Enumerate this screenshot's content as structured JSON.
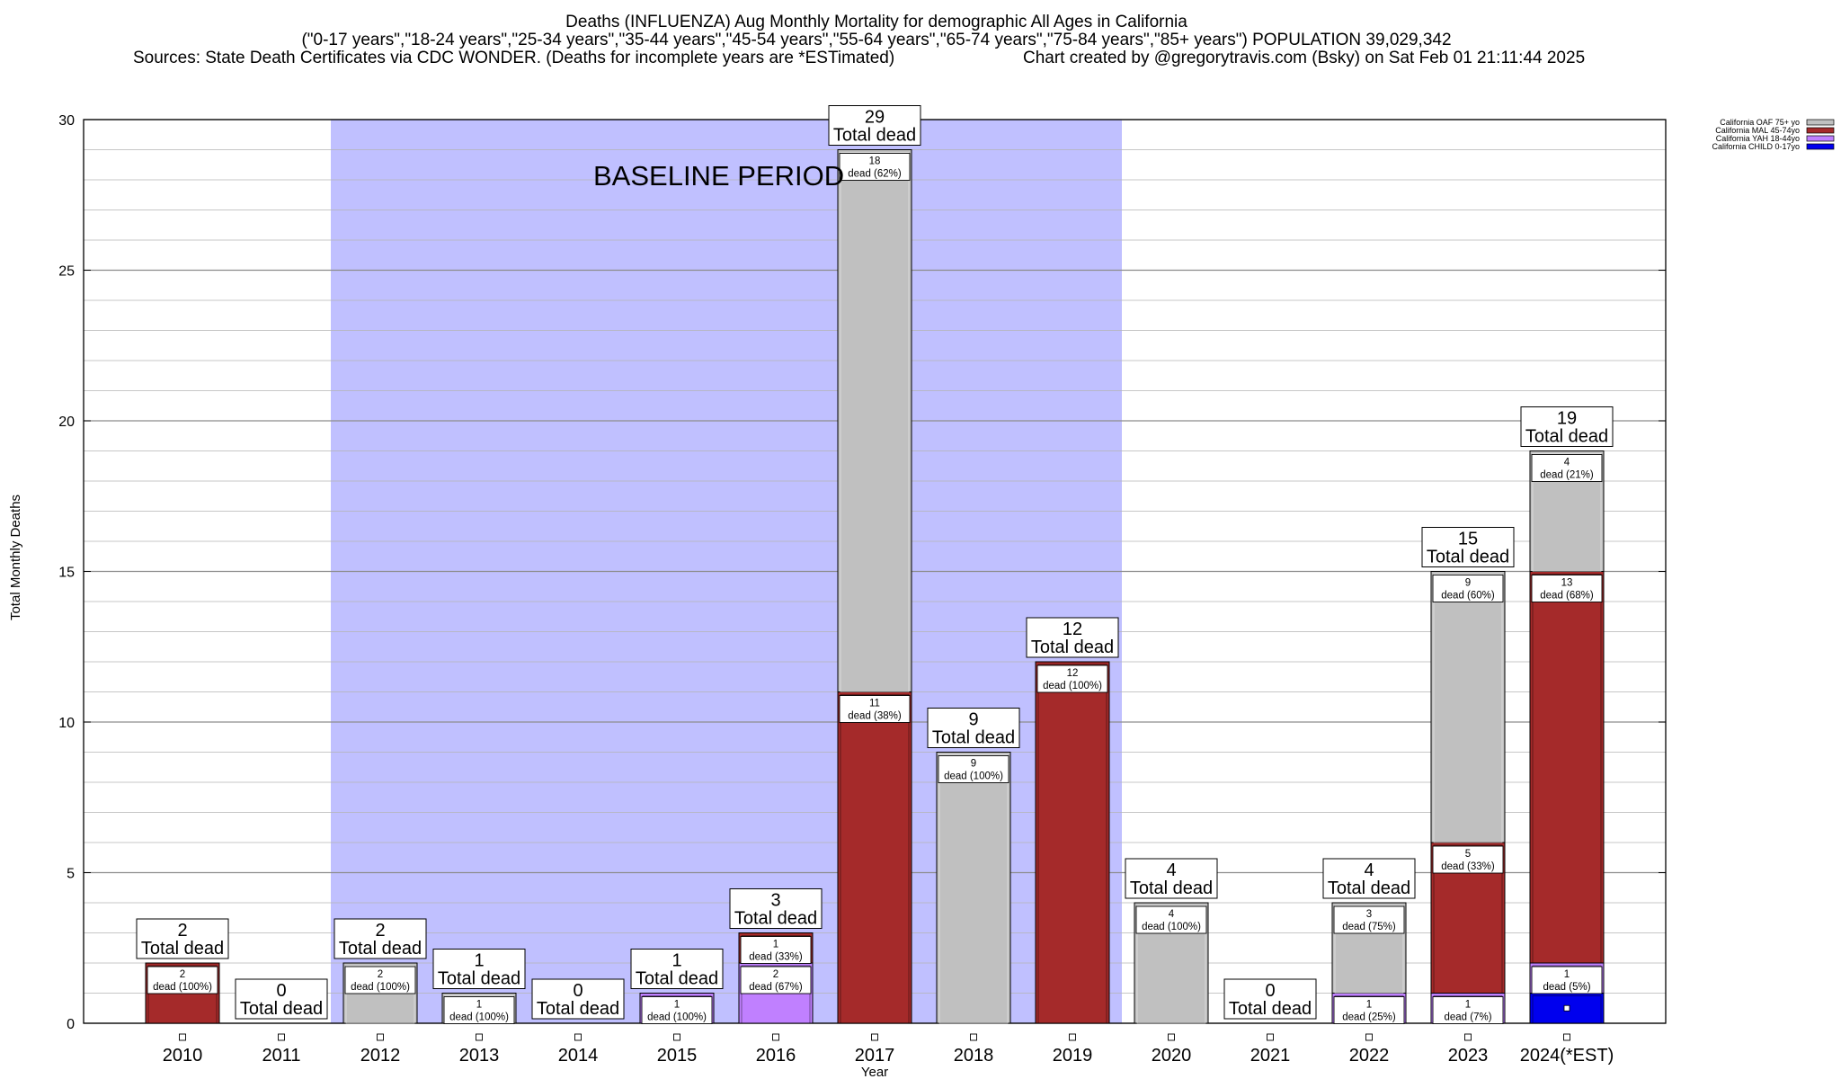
{
  "header": {
    "title": "Deaths (INFLUENZA) Aug Monthly Mortality for demographic All Ages in California",
    "subtitle": "(\"0-17 years\",\"18-24 years\",\"25-34 years\",\"35-44 years\",\"45-54 years\",\"55-64 years\",\"65-74 years\",\"75-84 years\",\"85+ years\") POPULATION 39,029,342",
    "sources": "Sources: State Death Certificates via CDC WONDER. (Deaths for incomplete years are *ESTimated)",
    "credit": "Chart created by @gregorytravis.com (Bsky) on Sat Feb 01 21:11:44 2025"
  },
  "chart_data": {
    "type": "bar",
    "stacked": true,
    "xlabel": "Year",
    "ylabel": "Total Monthly Deaths",
    "ylim": [
      0,
      30
    ],
    "yticks": [
      0,
      5,
      10,
      15,
      20,
      25,
      30
    ],
    "grid": true,
    "legend_position": "top-right",
    "categories": [
      "2010",
      "2011",
      "2012",
      "2013",
      "2014",
      "2015",
      "2016",
      "2017",
      "2018",
      "2019",
      "2020",
      "2021",
      "2022",
      "2023",
      "2024(*EST)"
    ],
    "series": [
      {
        "name": "California CHILD 0-17yo",
        "color": "#0000ee",
        "values": [
          0,
          0,
          0,
          0,
          0,
          0,
          0,
          0,
          0,
          0,
          0,
          0,
          0,
          0,
          1
        ]
      },
      {
        "name": "California YAH 18-44yo",
        "color": "#c080ff",
        "values": [
          0,
          0,
          0,
          0,
          0,
          1,
          2,
          0,
          0,
          0,
          0,
          0,
          1,
          1,
          1
        ]
      },
      {
        "name": "California MAL 45-74yo",
        "color": "#a52a2a",
        "values": [
          2,
          0,
          0,
          0,
          0,
          0,
          1,
          11,
          0,
          12,
          0,
          0,
          0,
          5,
          13
        ]
      },
      {
        "name": "California OAF 75+ yo",
        "color": "#c0c0c0",
        "values": [
          0,
          0,
          2,
          1,
          0,
          0,
          0,
          18,
          9,
          0,
          4,
          0,
          3,
          9,
          4
        ]
      }
    ],
    "totals": [
      2,
      0,
      2,
      1,
      0,
      1,
      3,
      29,
      9,
      12,
      4,
      0,
      4,
      15,
      19
    ],
    "total_label": "Total dead",
    "segment_labels": [
      [
        {
          "series": 2,
          "line1": "2",
          "line2": "dead (100%)"
        }
      ],
      [],
      [
        {
          "series": 3,
          "line1": "2",
          "line2": "dead (100%)"
        }
      ],
      [
        {
          "series": 3,
          "line1": "1",
          "line2": "dead (100%)"
        }
      ],
      [],
      [
        {
          "series": 1,
          "line1": "1",
          "line2": "dead (100%)"
        }
      ],
      [
        {
          "series": 1,
          "line1": "2",
          "line2": "dead (67%)"
        },
        {
          "series": 2,
          "line1": "1",
          "line2": "dead (33%)"
        }
      ],
      [
        {
          "series": 2,
          "line1": "11",
          "line2": "dead (38%)"
        },
        {
          "series": 3,
          "line1": "18",
          "line2": "dead (62%)"
        }
      ],
      [
        {
          "series": 3,
          "line1": "9",
          "line2": "dead (100%)"
        }
      ],
      [
        {
          "series": 2,
          "line1": "12",
          "line2": "dead (100%)"
        }
      ],
      [
        {
          "series": 3,
          "line1": "4",
          "line2": "dead (100%)"
        }
      ],
      [],
      [
        {
          "series": 1,
          "line1": "1",
          "line2": "dead (25%)"
        },
        {
          "series": 3,
          "line1": "3",
          "line2": "dead (75%)"
        }
      ],
      [
        {
          "series": 1,
          "line1": "1",
          "line2": "dead (7%)"
        },
        {
          "series": 2,
          "line1": "5",
          "line2": "dead (33%)"
        },
        {
          "series": 3,
          "line1": "9",
          "line2": "dead (60%)"
        }
      ],
      [
        {
          "series": 1,
          "line1": "1",
          "line2": "dead (5%)"
        },
        {
          "series": 2,
          "line1": "13",
          "line2": "dead (68%)"
        },
        {
          "series": 3,
          "line1": "4",
          "line2": "dead (21%)"
        }
      ]
    ],
    "baseline": {
      "label": "BASELINE PERIOD",
      "from": "2012",
      "to": "2019",
      "color": "#c0c0ff"
    }
  }
}
